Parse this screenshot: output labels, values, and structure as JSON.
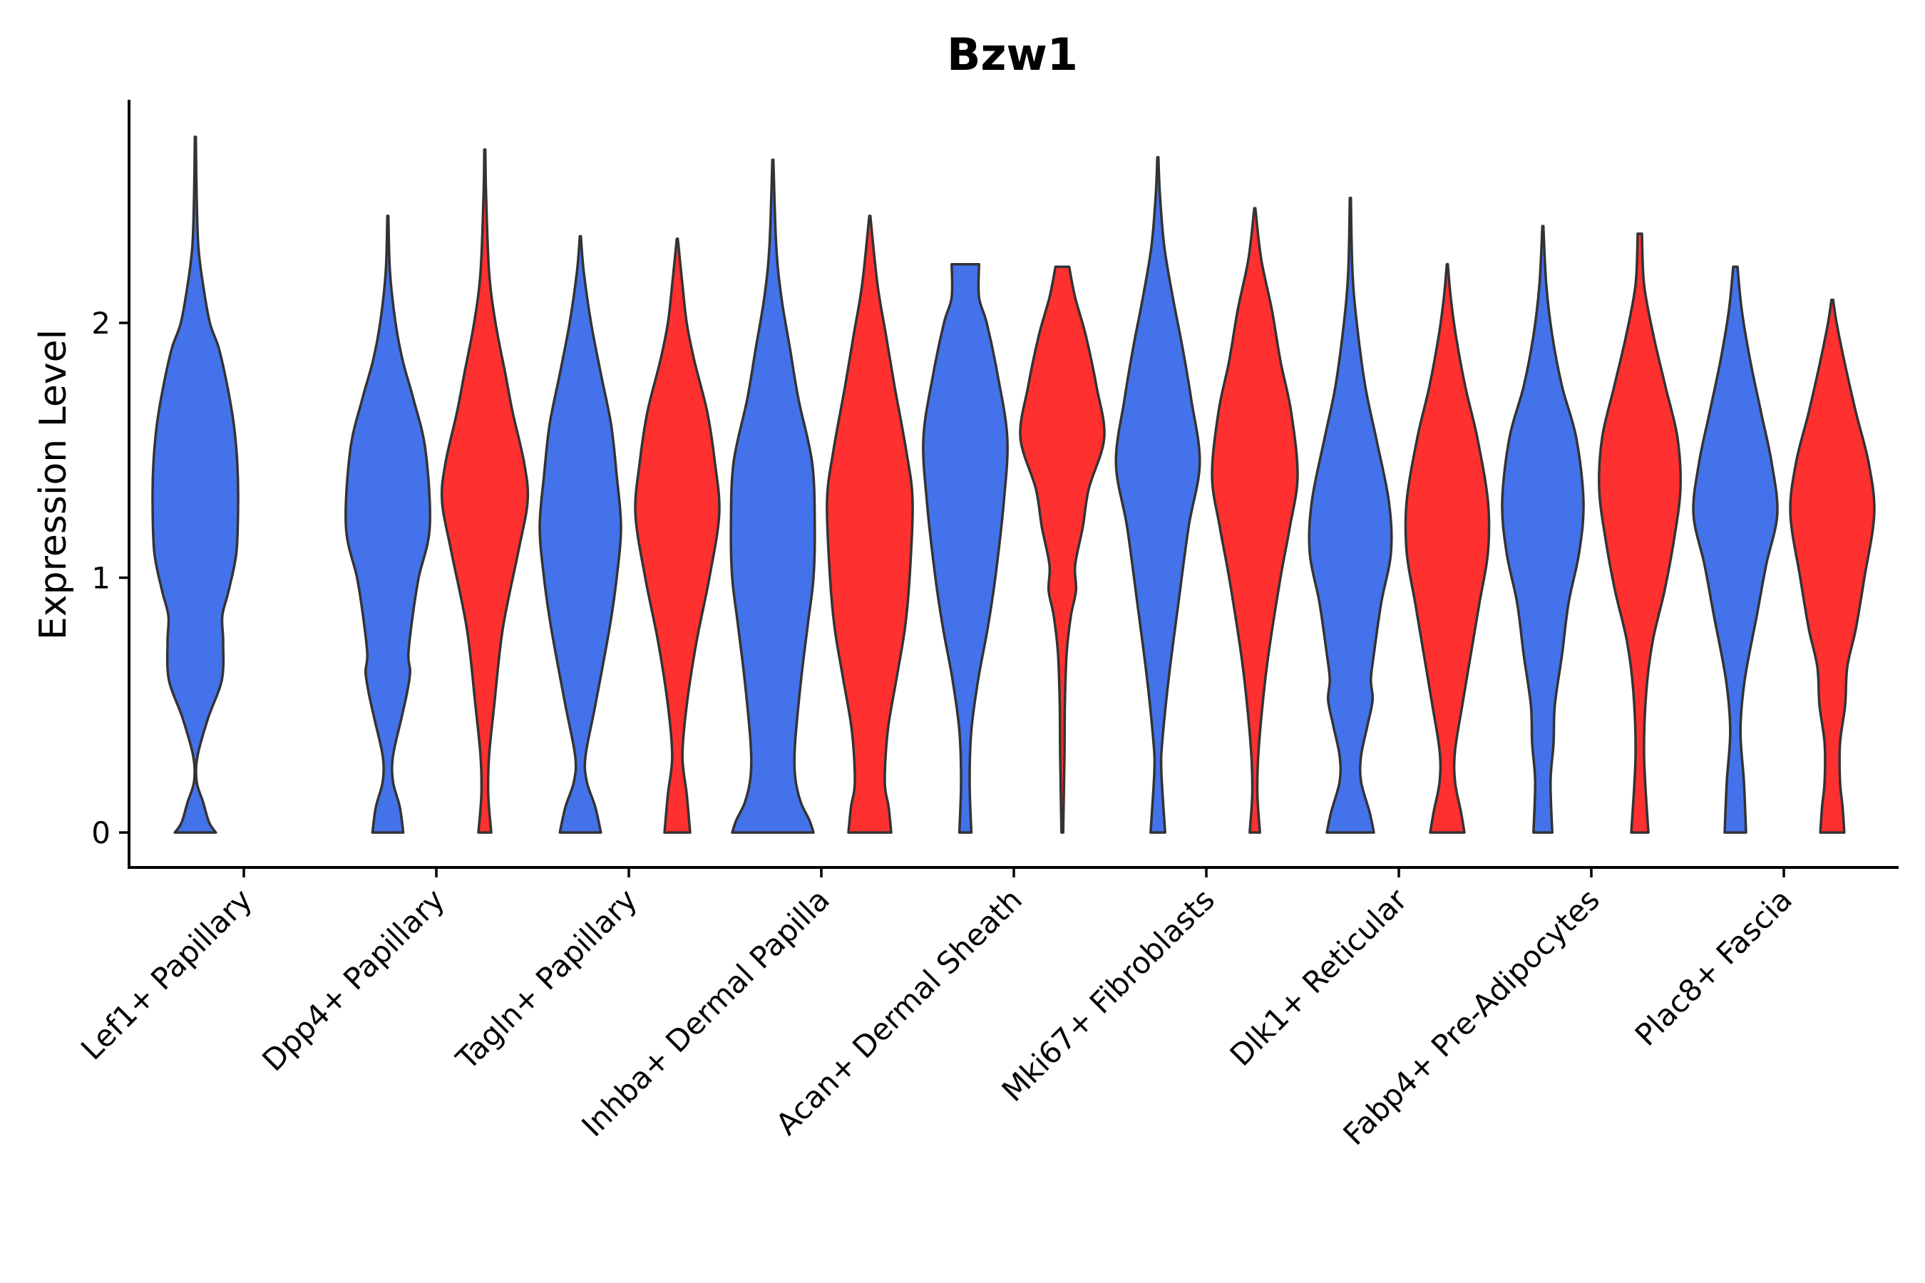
{
  "chart_data": {
    "type": "violin",
    "title": "Bzw1",
    "ylabel": "Expression Level",
    "xlabel": "",
    "ylim": [
      -0.14,
      2.9
    ],
    "yticks": [
      0,
      1,
      2
    ],
    "legend": "none",
    "grid": false,
    "colors": {
      "group1": "#4472ea",
      "group2": "#ff3030"
    },
    "categories": [
      "Lef1+ Papillary",
      "Dpp4+ Papillary",
      "Tagln+ Papillary",
      "Inhba+ Dermal Papilla",
      "Acan+ Dermal Sheath",
      "Mki67+ Fibroblasts",
      "Dlk1+ Reticular",
      "Fabp4+ Pre-Adipocytes",
      "Plac8+ Fascia"
    ],
    "violins": [
      {
        "category": "Lef1+ Papillary",
        "group": "group1",
        "ymax": 2.73,
        "profile": [
          [
            0,
            0.48
          ],
          [
            0.04,
            0.32
          ],
          [
            0.12,
            0.18
          ],
          [
            0.2,
            0.03
          ],
          [
            0.3,
            0.05
          ],
          [
            0.45,
            0.3
          ],
          [
            0.6,
            0.62
          ],
          [
            0.75,
            0.65
          ],
          [
            0.85,
            0.63
          ],
          [
            0.95,
            0.78
          ],
          [
            1.1,
            0.96
          ],
          [
            1.3,
            1.0
          ],
          [
            1.45,
            0.98
          ],
          [
            1.6,
            0.9
          ],
          [
            1.75,
            0.75
          ],
          [
            1.9,
            0.55
          ],
          [
            2.0,
            0.34
          ],
          [
            2.15,
            0.18
          ],
          [
            2.3,
            0.07
          ],
          [
            2.5,
            0.03
          ],
          [
            2.73,
            0.01
          ]
        ]
      },
      {
        "category": "Dpp4+ Papillary",
        "group": "group1",
        "ymax": 2.42,
        "profile": [
          [
            0,
            0.36
          ],
          [
            0.1,
            0.28
          ],
          [
            0.2,
            0.12
          ],
          [
            0.3,
            0.12
          ],
          [
            0.45,
            0.32
          ],
          [
            0.55,
            0.45
          ],
          [
            0.63,
            0.52
          ],
          [
            0.7,
            0.48
          ],
          [
            0.85,
            0.58
          ],
          [
            1.0,
            0.72
          ],
          [
            1.2,
            0.98
          ],
          [
            1.5,
            0.88
          ],
          [
            1.7,
            0.6
          ],
          [
            1.85,
            0.35
          ],
          [
            2.0,
            0.18
          ],
          [
            2.2,
            0.05
          ],
          [
            2.42,
            0.01
          ]
        ]
      },
      {
        "category": "Dpp4+ Papillary",
        "group": "group2",
        "ymax": 2.68,
        "profile": [
          [
            0,
            0.15
          ],
          [
            0.15,
            0.08
          ],
          [
            0.3,
            0.1
          ],
          [
            0.5,
            0.22
          ],
          [
            0.8,
            0.42
          ],
          [
            1.1,
            0.78
          ],
          [
            1.3,
            1.0
          ],
          [
            1.45,
            0.92
          ],
          [
            1.65,
            0.65
          ],
          [
            1.8,
            0.48
          ],
          [
            2.0,
            0.25
          ],
          [
            2.2,
            0.1
          ],
          [
            2.5,
            0.03
          ],
          [
            2.68,
            0.01
          ]
        ]
      },
      {
        "category": "Tagln+ Papillary",
        "group": "group1",
        "ymax": 2.34,
        "profile": [
          [
            0,
            0.48
          ],
          [
            0.1,
            0.35
          ],
          [
            0.2,
            0.15
          ],
          [
            0.3,
            0.12
          ],
          [
            0.5,
            0.35
          ],
          [
            0.8,
            0.68
          ],
          [
            1.0,
            0.85
          ],
          [
            1.2,
            0.95
          ],
          [
            1.4,
            0.85
          ],
          [
            1.6,
            0.72
          ],
          [
            1.8,
            0.48
          ],
          [
            2.0,
            0.25
          ],
          [
            2.2,
            0.08
          ],
          [
            2.34,
            0.01
          ]
        ]
      },
      {
        "category": "Tagln+ Papillary",
        "group": "group2",
        "ymax": 2.33,
        "profile": [
          [
            0,
            0.3
          ],
          [
            0.15,
            0.22
          ],
          [
            0.3,
            0.12
          ],
          [
            0.5,
            0.22
          ],
          [
            0.75,
            0.45
          ],
          [
            1.0,
            0.75
          ],
          [
            1.25,
            0.98
          ],
          [
            1.45,
            0.88
          ],
          [
            1.65,
            0.7
          ],
          [
            1.85,
            0.4
          ],
          [
            2.0,
            0.22
          ],
          [
            2.15,
            0.12
          ],
          [
            2.33,
            0.01
          ]
        ]
      },
      {
        "category": "Inhba+ Dermal Papilla",
        "group": "group1",
        "ymax": 2.64,
        "profile": [
          [
            0,
            0.95
          ],
          [
            0.05,
            0.85
          ],
          [
            0.12,
            0.65
          ],
          [
            0.22,
            0.52
          ],
          [
            0.35,
            0.52
          ],
          [
            0.6,
            0.66
          ],
          [
            0.82,
            0.82
          ],
          [
            1.0,
            0.95
          ],
          [
            1.2,
            0.98
          ],
          [
            1.45,
            0.92
          ],
          [
            1.7,
            0.6
          ],
          [
            1.9,
            0.4
          ],
          [
            2.1,
            0.2
          ],
          [
            2.3,
            0.08
          ],
          [
            2.64,
            0.01
          ]
        ]
      },
      {
        "category": "Inhba+ Dermal Papilla",
        "group": "group2",
        "ymax": 2.42,
        "profile": [
          [
            0,
            0.5
          ],
          [
            0.1,
            0.44
          ],
          [
            0.2,
            0.35
          ],
          [
            0.4,
            0.42
          ],
          [
            0.6,
            0.62
          ],
          [
            0.8,
            0.82
          ],
          [
            1.0,
            0.93
          ],
          [
            1.3,
            1.0
          ],
          [
            1.5,
            0.85
          ],
          [
            1.75,
            0.58
          ],
          [
            1.95,
            0.38
          ],
          [
            2.15,
            0.18
          ],
          [
            2.42,
            0.01
          ]
        ]
      },
      {
        "category": "Acan+ Dermal Sheath",
        "group": "group1",
        "ymax": 2.23,
        "profile": [
          [
            0,
            0.14
          ],
          [
            0.2,
            0.1
          ],
          [
            0.4,
            0.14
          ],
          [
            0.6,
            0.3
          ],
          [
            0.8,
            0.52
          ],
          [
            1.0,
            0.7
          ],
          [
            1.3,
            0.9
          ],
          [
            1.55,
            0.98
          ],
          [
            1.8,
            0.75
          ],
          [
            2.0,
            0.5
          ],
          [
            2.1,
            0.32
          ],
          [
            2.23,
            0.32
          ]
        ]
      },
      {
        "category": "Acan+ Dermal Sheath",
        "group": "group2",
        "ymax": 2.22,
        "profile": [
          [
            0,
            0.02
          ],
          [
            0.3,
            0.05
          ],
          [
            0.5,
            0.06
          ],
          [
            0.7,
            0.1
          ],
          [
            0.85,
            0.2
          ],
          [
            0.95,
            0.32
          ],
          [
            1.05,
            0.3
          ],
          [
            1.2,
            0.48
          ],
          [
            1.35,
            0.62
          ],
          [
            1.55,
            0.98
          ],
          [
            1.75,
            0.8
          ],
          [
            1.95,
            0.55
          ],
          [
            2.1,
            0.3
          ],
          [
            2.22,
            0.16
          ]
        ]
      },
      {
        "category": "Mki67+ Fibroblasts",
        "group": "group1",
        "ymax": 2.65,
        "profile": [
          [
            0,
            0.17
          ],
          [
            0.1,
            0.13
          ],
          [
            0.25,
            0.08
          ],
          [
            0.35,
            0.1
          ],
          [
            0.6,
            0.25
          ],
          [
            0.9,
            0.48
          ],
          [
            1.2,
            0.72
          ],
          [
            1.45,
            0.98
          ],
          [
            1.7,
            0.78
          ],
          [
            1.9,
            0.58
          ],
          [
            2.1,
            0.35
          ],
          [
            2.3,
            0.15
          ],
          [
            2.5,
            0.05
          ],
          [
            2.65,
            0.01
          ]
        ]
      },
      {
        "category": "Mki67+ Fibroblasts",
        "group": "group2",
        "ymax": 2.45,
        "profile": [
          [
            0,
            0.12
          ],
          [
            0.15,
            0.06
          ],
          [
            0.3,
            0.08
          ],
          [
            0.5,
            0.18
          ],
          [
            0.7,
            0.32
          ],
          [
            1.0,
            0.6
          ],
          [
            1.2,
            0.82
          ],
          [
            1.4,
            1.0
          ],
          [
            1.65,
            0.85
          ],
          [
            1.85,
            0.6
          ],
          [
            2.05,
            0.4
          ],
          [
            2.25,
            0.15
          ],
          [
            2.45,
            0.01
          ]
        ]
      },
      {
        "category": "Dlk1+ Reticular",
        "group": "group1",
        "ymax": 2.49,
        "profile": [
          [
            0,
            0.55
          ],
          [
            0.08,
            0.45
          ],
          [
            0.2,
            0.25
          ],
          [
            0.3,
            0.25
          ],
          [
            0.42,
            0.4
          ],
          [
            0.52,
            0.52
          ],
          [
            0.6,
            0.48
          ],
          [
            0.7,
            0.55
          ],
          [
            0.9,
            0.72
          ],
          [
            1.1,
            0.95
          ],
          [
            1.3,
            0.9
          ],
          [
            1.55,
            0.6
          ],
          [
            1.75,
            0.35
          ],
          [
            2.0,
            0.15
          ],
          [
            2.2,
            0.05
          ],
          [
            2.49,
            0.01
          ]
        ]
      },
      {
        "category": "Dlk1+ Reticular",
        "group": "group2",
        "ymax": 2.23,
        "profile": [
          [
            0,
            0.4
          ],
          [
            0.08,
            0.32
          ],
          [
            0.2,
            0.18
          ],
          [
            0.32,
            0.18
          ],
          [
            0.5,
            0.35
          ],
          [
            0.7,
            0.55
          ],
          [
            0.9,
            0.75
          ],
          [
            1.1,
            0.95
          ],
          [
            1.3,
            0.95
          ],
          [
            1.55,
            0.7
          ],
          [
            1.75,
            0.42
          ],
          [
            1.95,
            0.2
          ],
          [
            2.1,
            0.08
          ],
          [
            2.23,
            0.01
          ]
        ]
      },
      {
        "category": "Fabp4+ Pre-Adipocytes",
        "group": "group1",
        "ymax": 2.38,
        "profile": [
          [
            0,
            0.22
          ],
          [
            0.2,
            0.18
          ],
          [
            0.35,
            0.25
          ],
          [
            0.5,
            0.28
          ],
          [
            0.7,
            0.45
          ],
          [
            0.9,
            0.6
          ],
          [
            1.1,
            0.85
          ],
          [
            1.3,
            0.95
          ],
          [
            1.55,
            0.78
          ],
          [
            1.75,
            0.45
          ],
          [
            1.95,
            0.22
          ],
          [
            2.15,
            0.08
          ],
          [
            2.38,
            0.01
          ]
        ]
      },
      {
        "category": "Fabp4+ Pre-Adipocytes",
        "group": "group2",
        "ymax": 2.35,
        "profile": [
          [
            0,
            0.2
          ],
          [
            0.3,
            0.1
          ],
          [
            0.55,
            0.15
          ],
          [
            0.75,
            0.3
          ],
          [
            0.95,
            0.58
          ],
          [
            1.15,
            0.8
          ],
          [
            1.35,
            0.95
          ],
          [
            1.55,
            0.88
          ],
          [
            1.75,
            0.6
          ],
          [
            1.95,
            0.32
          ],
          [
            2.15,
            0.1
          ],
          [
            2.35,
            0.05
          ]
        ]
      },
      {
        "category": "Plac8+ Fascia",
        "group": "group1",
        "ymax": 2.22,
        "profile": [
          [
            0,
            0.25
          ],
          [
            0.2,
            0.2
          ],
          [
            0.4,
            0.12
          ],
          [
            0.6,
            0.22
          ],
          [
            0.85,
            0.5
          ],
          [
            1.05,
            0.72
          ],
          [
            1.25,
            0.98
          ],
          [
            1.45,
            0.85
          ],
          [
            1.65,
            0.6
          ],
          [
            1.85,
            0.35
          ],
          [
            2.05,
            0.15
          ],
          [
            2.22,
            0.05
          ]
        ]
      },
      {
        "category": "Plac8+ Fascia",
        "group": "group2",
        "ymax": 2.09,
        "profile": [
          [
            0,
            0.28
          ],
          [
            0.1,
            0.24
          ],
          [
            0.2,
            0.18
          ],
          [
            0.35,
            0.18
          ],
          [
            0.5,
            0.3
          ],
          [
            0.65,
            0.35
          ],
          [
            0.8,
            0.55
          ],
          [
            1.0,
            0.75
          ],
          [
            1.25,
            0.98
          ],
          [
            1.45,
            0.85
          ],
          [
            1.65,
            0.55
          ],
          [
            1.85,
            0.28
          ],
          [
            2.0,
            0.1
          ],
          [
            2.09,
            0.02
          ]
        ]
      }
    ]
  }
}
